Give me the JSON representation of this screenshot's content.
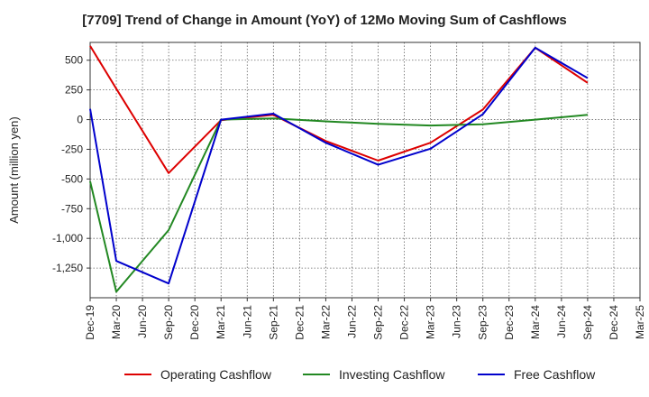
{
  "chart_data": {
    "type": "line",
    "title": "[7709]  Trend of Change in Amount (YoY) of 12Mo Moving Sum of Cashflows",
    "xlabel": "",
    "ylabel": "Amount (million yen)",
    "ylim": [
      -1500,
      650
    ],
    "yticks": [
      500,
      250,
      0,
      -250,
      -500,
      -750,
      -1000,
      -1250
    ],
    "ytick_labels": [
      "500",
      "250",
      "0",
      "-250",
      "-500",
      "-750",
      "-1,000",
      "-1,250"
    ],
    "categories": [
      "Dec-19",
      "Mar-20",
      "Jun-20",
      "Sep-20",
      "Dec-20",
      "Mar-21",
      "Jun-21",
      "Sep-21",
      "Dec-21",
      "Mar-22",
      "Jun-22",
      "Sep-22",
      "Dec-22",
      "Mar-23",
      "Jun-23",
      "Sep-23",
      "Dec-23",
      "Mar-24",
      "Jun-24",
      "Sep-24",
      "Dec-24",
      "Mar-25"
    ],
    "grid": true,
    "legend_position": "bottom",
    "series": [
      {
        "name": "Operating Cashflow",
        "color": "#dd0000",
        "x": [
          "Dec-19",
          "Mar-20",
          "Sep-20",
          "Mar-21",
          "Sep-21",
          "Mar-22",
          "Sep-22",
          "Mar-23",
          "Sep-23",
          "Mar-24",
          "Sep-24"
        ],
        "values": [
          620,
          260,
          -450,
          -5,
          40,
          -180,
          -345,
          -195,
          85,
          605,
          310
        ]
      },
      {
        "name": "Investing Cashflow",
        "color": "#228822",
        "x": [
          "Dec-19",
          "Mar-20",
          "Sep-20",
          "Mar-21",
          "Sep-21",
          "Mar-22",
          "Sep-22",
          "Mar-23",
          "Sep-23",
          "Mar-24",
          "Sep-24"
        ],
        "values": [
          -520,
          -1450,
          -930,
          0,
          10,
          -15,
          -35,
          -50,
          -40,
          0,
          40
        ]
      },
      {
        "name": "Free Cashflow",
        "color": "#0000cc",
        "x": [
          "Dec-19",
          "Mar-20",
          "Sep-20",
          "Mar-21",
          "Sep-21",
          "Mar-22",
          "Sep-22",
          "Mar-23",
          "Sep-23",
          "Mar-24",
          "Sep-24"
        ],
        "values": [
          90,
          -1190,
          -1380,
          0,
          50,
          -195,
          -380,
          -245,
          45,
          605,
          350
        ]
      }
    ]
  }
}
